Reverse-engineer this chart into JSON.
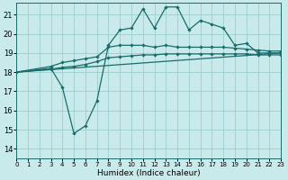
{
  "xlabel": "Humidex (Indice chaleur)",
  "bg_color": "#c8eaea",
  "grid_color": "#9ecece",
  "line_color": "#1a6b6b",
  "xlim": [
    0,
    23
  ],
  "ylim": [
    13.5,
    21.6
  ],
  "yticks": [
    14,
    15,
    16,
    17,
    18,
    19,
    20,
    21
  ],
  "xticks": [
    0,
    1,
    2,
    3,
    4,
    5,
    6,
    7,
    8,
    9,
    10,
    11,
    12,
    13,
    14,
    15,
    16,
    17,
    18,
    19,
    20,
    21,
    22,
    23
  ],
  "line_volatile_x": [
    0,
    3,
    4,
    5,
    6,
    7,
    8,
    9,
    10,
    11,
    12,
    13,
    14,
    15,
    16,
    17,
    18,
    19,
    20,
    21,
    22,
    23
  ],
  "line_volatile_y": [
    18.0,
    18.2,
    17.2,
    14.8,
    15.2,
    16.5,
    19.4,
    20.2,
    20.3,
    21.3,
    20.3,
    21.4,
    21.4,
    20.2,
    20.7,
    20.5,
    20.3,
    19.4,
    19.5,
    19.0,
    19.0,
    19.0
  ],
  "line_upper_x": [
    0,
    3,
    4,
    5,
    6,
    7,
    8,
    9,
    10,
    11,
    12,
    13,
    14,
    15,
    16,
    17,
    18,
    19,
    20,
    21,
    22,
    23
  ],
  "line_upper_y": [
    18.0,
    18.3,
    18.5,
    18.6,
    18.7,
    18.8,
    19.3,
    19.4,
    19.4,
    19.4,
    19.3,
    19.4,
    19.3,
    19.3,
    19.3,
    19.3,
    19.3,
    19.25,
    19.2,
    19.15,
    19.1,
    19.1
  ],
  "line_mid_x": [
    0,
    3,
    4,
    5,
    6,
    7,
    8,
    9,
    10,
    11,
    12,
    13,
    14,
    15,
    16,
    17,
    18,
    19,
    20,
    21,
    22,
    23
  ],
  "line_mid_y": [
    18.0,
    18.15,
    18.25,
    18.3,
    18.4,
    18.55,
    18.75,
    18.8,
    18.85,
    18.9,
    18.9,
    18.95,
    18.95,
    18.95,
    18.95,
    18.95,
    18.95,
    18.95,
    18.95,
    18.9,
    18.9,
    18.9
  ],
  "line_trend_x": [
    0,
    23
  ],
  "line_trend_y": [
    18.0,
    19.0
  ]
}
